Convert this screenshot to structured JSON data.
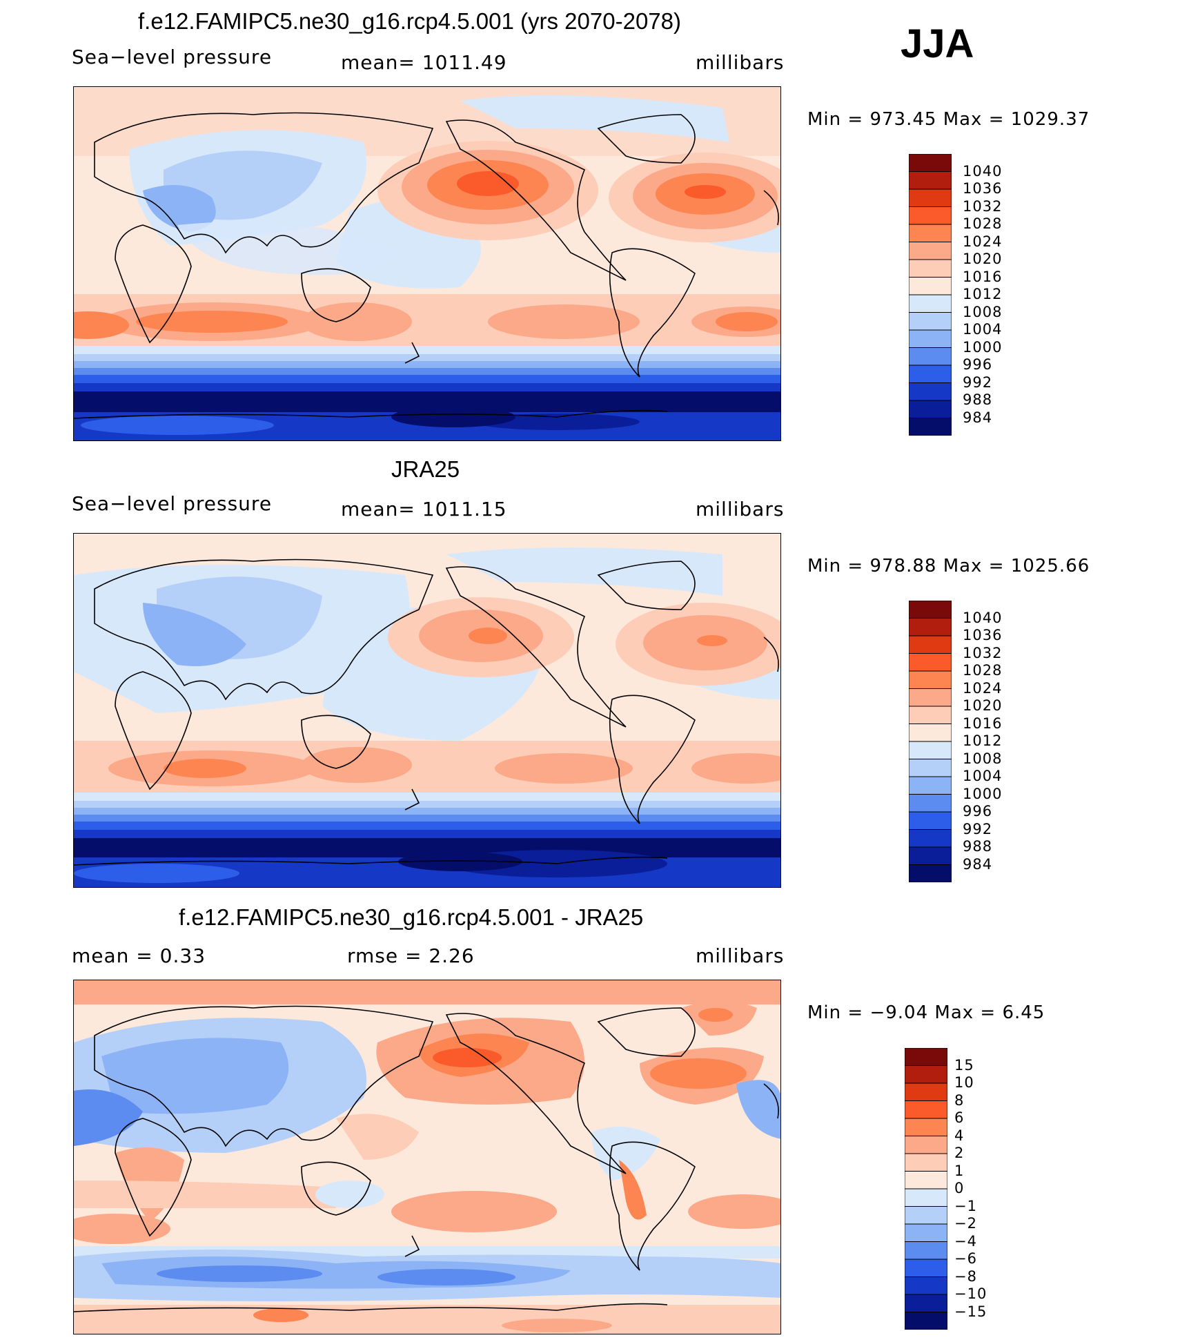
{
  "season": "JJA",
  "panels": [
    {
      "title": "f.e12.FAMIPC5.ne30_g16.rcp4.5.001 (yrs 2070-2078)",
      "left_label": "Sea−level pressure",
      "center_label": "mean=  1011.49",
      "units": "millibars",
      "minmax": "Min  =  973.45  Max  =  1029.37",
      "colorbar": {
        "labels": [
          "1040",
          "1036",
          "1032",
          "1028",
          "1024",
          "1020",
          "1016",
          "1012",
          "1008",
          "1004",
          "1000",
          "996",
          "992",
          "988",
          "984"
        ],
        "colors": [
          "#7a0a0a",
          "#b11e0e",
          "#e03a12",
          "#fb5a2a",
          "#fc8552",
          "#fca98a",
          "#fdcdb8",
          "#fde9dc",
          "#d8e8fb",
          "#b5d0f8",
          "#8cb3f5",
          "#5d8cf0",
          "#2d5ee9",
          "#1638c6",
          "#0a1e9a",
          "#040e6a"
        ]
      },
      "min": 973.45,
      "max": 1029.37,
      "mean": 1011.49
    },
    {
      "title": "JRA25",
      "left_label": "Sea−level pressure",
      "center_label": "mean=  1011.15",
      "units": "millibars",
      "minmax": "Min  =  978.88  Max  =  1025.66",
      "colorbar": {
        "labels": [
          "1040",
          "1036",
          "1032",
          "1028",
          "1024",
          "1020",
          "1016",
          "1012",
          "1008",
          "1004",
          "1000",
          "996",
          "992",
          "988",
          "984"
        ],
        "colors": [
          "#7a0a0a",
          "#b11e0e",
          "#e03a12",
          "#fb5a2a",
          "#fc8552",
          "#fca98a",
          "#fdcdb8",
          "#fde9dc",
          "#d8e8fb",
          "#b5d0f8",
          "#8cb3f5",
          "#5d8cf0",
          "#2d5ee9",
          "#1638c6",
          "#0a1e9a",
          "#040e6a"
        ]
      },
      "min": 978.88,
      "max": 1025.66,
      "mean": 1011.15
    },
    {
      "title": "f.e12.FAMIPC5.ne30_g16.rcp4.5.001 - JRA25",
      "left_label": "mean  =      0.33",
      "center_label": "rmse  =      2.26",
      "units": "millibars",
      "minmax": "Min  =   −9.04  Max  =      6.45",
      "colorbar": {
        "labels": [
          "15",
          "10",
          "8",
          "6",
          "4",
          "2",
          "1",
          "0",
          "−1",
          "−2",
          "−4",
          "−6",
          "−8",
          "−10",
          "−15"
        ],
        "colors": [
          "#7a0a0a",
          "#b11e0e",
          "#e03a12",
          "#fb5a2a",
          "#fc8552",
          "#fca98a",
          "#fdcdb8",
          "#fde9dc",
          "#d8e8fb",
          "#b5d0f8",
          "#8cb3f5",
          "#5d8cf0",
          "#2d5ee9",
          "#1638c6",
          "#0a1e9a",
          "#040e6a"
        ]
      },
      "min": -9.04,
      "max": 6.45,
      "mean": 0.33,
      "rmse": 2.26
    }
  ]
}
